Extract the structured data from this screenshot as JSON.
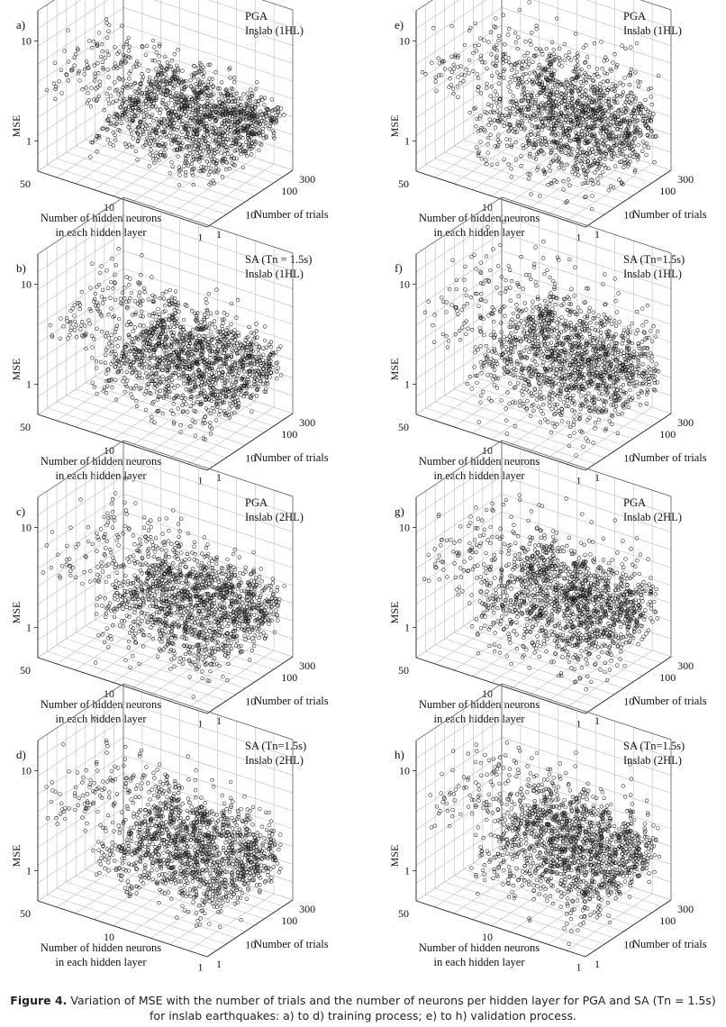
{
  "figure_caption": {
    "label": "Figure 4.",
    "text": "Variation of MSE with the number of trials and the number of neurons per hidden layer for PGA and SA (Tn = 1.5s) for inslab earthquakes: a) to d) training process; e) to h) validation process."
  },
  "chart_data": [
    {
      "type": "scatter3d",
      "panel_label": "a)",
      "title_lines": [
        "PGA",
        "Inslab (1HL)"
      ],
      "zlabel": "MSE",
      "xlabel_lines": [
        "Number of hidden neurons",
        "in each hidden layer"
      ],
      "ylabel": "Number of trials",
      "x_range": [
        1,
        50
      ],
      "x_ticks": [
        "50",
        "10",
        "1"
      ],
      "y_range": [
        1,
        300
      ],
      "y_ticks": [
        "1",
        "10",
        "100",
        "300"
      ],
      "z_range": [
        0.5,
        20
      ],
      "z_ticks": [
        "1",
        "10"
      ],
      "axis_scale": "log",
      "marker": "open-circle",
      "point_count_estimate": 1500,
      "mse_spread": 0.55,
      "seed": 11
    },
    {
      "type": "scatter3d",
      "panel_label": "b)",
      "title_lines": [
        "SA (Tn = 1.5s)",
        "Inslab (1HL)"
      ],
      "zlabel": "MSE",
      "xlabel_lines": [
        "Number of hidden neurons",
        "in each hidden layer"
      ],
      "ylabel": "Number of trials",
      "x_range": [
        1,
        50
      ],
      "x_ticks": [
        "50",
        "10",
        "1"
      ],
      "y_range": [
        1,
        300
      ],
      "y_ticks": [
        "1",
        "10",
        "100",
        "300"
      ],
      "z_range": [
        0.5,
        20
      ],
      "z_ticks": [
        "1",
        "10"
      ],
      "axis_scale": "log",
      "marker": "open-circle",
      "point_count_estimate": 1500,
      "mse_spread": 0.6,
      "seed": 23
    },
    {
      "type": "scatter3d",
      "panel_label": "c)",
      "title_lines": [
        "PGA",
        "Inslab (2HL)"
      ],
      "zlabel": "MSE",
      "xlabel_lines": [
        "Number of hidden neurons",
        "in each hidden layer"
      ],
      "ylabel": "Number of trials",
      "x_range": [
        1,
        50
      ],
      "x_ticks": [
        "50",
        "10",
        "1"
      ],
      "y_range": [
        1,
        300
      ],
      "y_ticks": [
        "1",
        "10",
        "100",
        "300"
      ],
      "z_range": [
        0.5,
        20
      ],
      "z_ticks": [
        "1",
        "10"
      ],
      "axis_scale": "log",
      "marker": "open-circle",
      "point_count_estimate": 1500,
      "mse_spread": 0.7,
      "seed": 37
    },
    {
      "type": "scatter3d",
      "panel_label": "d)",
      "title_lines": [
        "SA (Tn=1.5s)",
        "Inslab (2HL)"
      ],
      "zlabel": "MSE",
      "xlabel_lines": [
        "Number of hidden neurons",
        "in each hidden layer"
      ],
      "ylabel": "Number of trials",
      "x_range": [
        1,
        50
      ],
      "x_ticks": [
        "50",
        "10",
        "1"
      ],
      "y_range": [
        1,
        300
      ],
      "y_ticks": [
        "1",
        "10",
        "100",
        "300"
      ],
      "z_range": [
        0.5,
        20
      ],
      "z_ticks": [
        "1",
        "10"
      ],
      "axis_scale": "log",
      "marker": "open-circle",
      "point_count_estimate": 1500,
      "mse_spread": 0.75,
      "seed": 41
    },
    {
      "type": "scatter3d",
      "panel_label": "e)",
      "title_lines": [
        "PGA",
        "Inslab (1HL)"
      ],
      "zlabel": "MSE",
      "xlabel_lines": [
        "Number of hidden neurons",
        "in each hidden layer"
      ],
      "ylabel": "Number of trials",
      "x_range": [
        1,
        50
      ],
      "x_ticks": [
        "50",
        "10",
        "1"
      ],
      "y_range": [
        1,
        300
      ],
      "y_ticks": [
        "1",
        "10",
        "100",
        "300"
      ],
      "z_range": [
        0.5,
        20
      ],
      "z_ticks": [
        "1",
        "10"
      ],
      "axis_scale": "log",
      "marker": "open-circle",
      "point_count_estimate": 1500,
      "mse_spread": 0.95,
      "seed": 53
    },
    {
      "type": "scatter3d",
      "panel_label": "f)",
      "title_lines": [
        "SA (Tn=1.5s)",
        "Inslab (1HL)"
      ],
      "zlabel": "MSE",
      "xlabel_lines": [
        "Number of hidden neurons",
        "in each hidden layer"
      ],
      "ylabel": "Number of trials",
      "x_range": [
        1,
        50
      ],
      "x_ticks": [
        "50",
        "10",
        "1"
      ],
      "y_range": [
        1,
        300
      ],
      "y_ticks": [
        "1",
        "10",
        "100",
        "300"
      ],
      "z_range": [
        0.5,
        20
      ],
      "z_ticks": [
        "1",
        "10"
      ],
      "axis_scale": "log",
      "marker": "open-circle",
      "point_count_estimate": 1500,
      "mse_spread": 0.95,
      "seed": 67
    },
    {
      "type": "scatter3d",
      "panel_label": "g)",
      "title_lines": [
        "PGA",
        "Inslab (2HL)"
      ],
      "zlabel": "MSE",
      "xlabel_lines": [
        "Number of hidden neurons",
        "in each hidden layer"
      ],
      "ylabel": "Number of trials",
      "x_range": [
        1,
        50
      ],
      "x_ticks": [
        "50",
        "10",
        "1"
      ],
      "y_range": [
        1,
        300
      ],
      "y_ticks": [
        "1",
        "10",
        "100",
        "300"
      ],
      "z_range": [
        0.5,
        20
      ],
      "z_ticks": [
        "1",
        "10"
      ],
      "axis_scale": "log",
      "marker": "open-circle",
      "point_count_estimate": 1500,
      "mse_spread": 0.8,
      "seed": 79
    },
    {
      "type": "scatter3d",
      "panel_label": "h)",
      "title_lines": [
        "SA (Tn=1.5s)",
        "Inslab (2HL)"
      ],
      "zlabel": "MSE",
      "xlabel_lines": [
        "Number of hidden neurons",
        "in each hidden layer"
      ],
      "ylabel": "Number of trials",
      "x_range": [
        1,
        50
      ],
      "x_ticks": [
        "50",
        "10",
        "1"
      ],
      "y_range": [
        1,
        300
      ],
      "y_ticks": [
        "1",
        "10",
        "100",
        "300"
      ],
      "z_range": [
        0.5,
        20
      ],
      "z_ticks": [
        "1",
        "10"
      ],
      "axis_scale": "log",
      "marker": "open-circle",
      "point_count_estimate": 1500,
      "mse_spread": 0.8,
      "seed": 97
    }
  ]
}
